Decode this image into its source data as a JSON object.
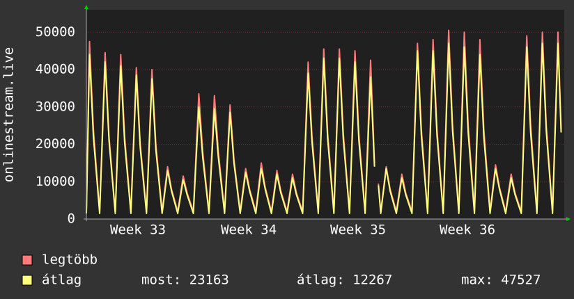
{
  "chart_data": {
    "type": "line",
    "ylabel": "onlinestream.live",
    "x": [
      0,
      0.2,
      0.45,
      0.85,
      1.2,
      1.45,
      1.85,
      2.2,
      2.45,
      2.85,
      3.2,
      3.45,
      3.85,
      4.2,
      4.45,
      4.85,
      5.2,
      5.45,
      5.85,
      6.2,
      6.45,
      6.85,
      7.2,
      7.45,
      7.85,
      8.2,
      8.45,
      8.85,
      9.2,
      9.45,
      9.85,
      10.2,
      10.45,
      10.85,
      11.2,
      11.45,
      11.85,
      12.2,
      12.45,
      12.85,
      13.2,
      13.45,
      13.85,
      14.2,
      14.45,
      14.85,
      15.2,
      15.45,
      15.85,
      16.2,
      16.45,
      16.85,
      17.2,
      17.45,
      17.85,
      18.2,
      18.45,
      18.6,
      18.7,
      18.85,
      19.2,
      19.45,
      19.85,
      20.2,
      20.45,
      20.85,
      21.2,
      21.45,
      21.85,
      22.2,
      22.45,
      22.85,
      23.2,
      23.45,
      23.85,
      24.2,
      24.45,
      24.85,
      25.2,
      25.45,
      25.85,
      26.2,
      26.45,
      26.85,
      27.2,
      27.45,
      27.85,
      28.2,
      28.45,
      28.85,
      29.2,
      29.45,
      29.85,
      30.2,
      30.4
    ],
    "series": [
      {
        "name": "legtöbb",
        "color": "#ff7b7b",
        "values": [
          2000,
          47500,
          24000,
          2000,
          44500,
          22000,
          2000,
          44000,
          22000,
          2000,
          40500,
          20000,
          2000,
          40000,
          20000,
          2000,
          14000,
          8000,
          2000,
          11500,
          7000,
          2000,
          33500,
          18000,
          2000,
          33000,
          18000,
          2000,
          30500,
          16000,
          2000,
          13500,
          8000,
          2000,
          15000,
          8500,
          2000,
          13000,
          7500,
          2000,
          12000,
          7000,
          2000,
          42000,
          22000,
          2000,
          45500,
          23000,
          2000,
          45500,
          23000,
          2000,
          45000,
          22500,
          2000,
          42500,
          15000,
          null,
          9500,
          2000,
          14000,
          8000,
          2000,
          12000,
          7000,
          2000,
          47000,
          24000,
          2000,
          48000,
          24000,
          2000,
          50500,
          25000,
          2000,
          50000,
          25000,
          2000,
          48000,
          24000,
          2000,
          14500,
          8500,
          2000,
          12000,
          7000,
          2000,
          49000,
          25000,
          2000,
          50000,
          25000,
          2000,
          50000,
          24000
        ]
      },
      {
        "name": "átlag",
        "color": "#ffff80",
        "values": [
          1500,
          44000,
          22000,
          1500,
          42000,
          21000,
          1500,
          41000,
          20500,
          1500,
          38500,
          19000,
          1500,
          37500,
          18500,
          1500,
          13000,
          7500,
          1500,
          10500,
          6500,
          1500,
          30000,
          16500,
          1500,
          29500,
          16500,
          1500,
          28500,
          15000,
          1500,
          12500,
          7500,
          1500,
          13500,
          8000,
          1500,
          12000,
          7000,
          1500,
          11000,
          6500,
          1500,
          39000,
          20500,
          1500,
          43000,
          21500,
          1500,
          43000,
          21500,
          1500,
          42000,
          21000,
          1500,
          38000,
          14000,
          null,
          9000,
          1500,
          13500,
          7500,
          1500,
          11000,
          6500,
          1500,
          45000,
          22500,
          1500,
          45000,
          22500,
          1500,
          47000,
          23500,
          1500,
          46000,
          23000,
          1500,
          44000,
          22000,
          1500,
          13500,
          8000,
          1500,
          11000,
          6500,
          1500,
          46000,
          23000,
          1500,
          47000,
          23500,
          1500,
          47000,
          23163
        ]
      }
    ],
    "xlim": [
      0,
      30.6
    ],
    "xticks": [
      {
        "value": 3.3,
        "label": "Week 33"
      },
      {
        "value": 10.4,
        "label": "Week 34"
      },
      {
        "value": 17.4,
        "label": "Week 35"
      },
      {
        "value": 24.4,
        "label": "Week 36"
      }
    ],
    "ylim": [
      0,
      56000
    ],
    "yticks": [
      0,
      10000,
      20000,
      30000,
      40000,
      50000
    ],
    "grid": true,
    "stats": [
      "most: 23163",
      "átlag: 12267",
      "max: 47527"
    ]
  }
}
